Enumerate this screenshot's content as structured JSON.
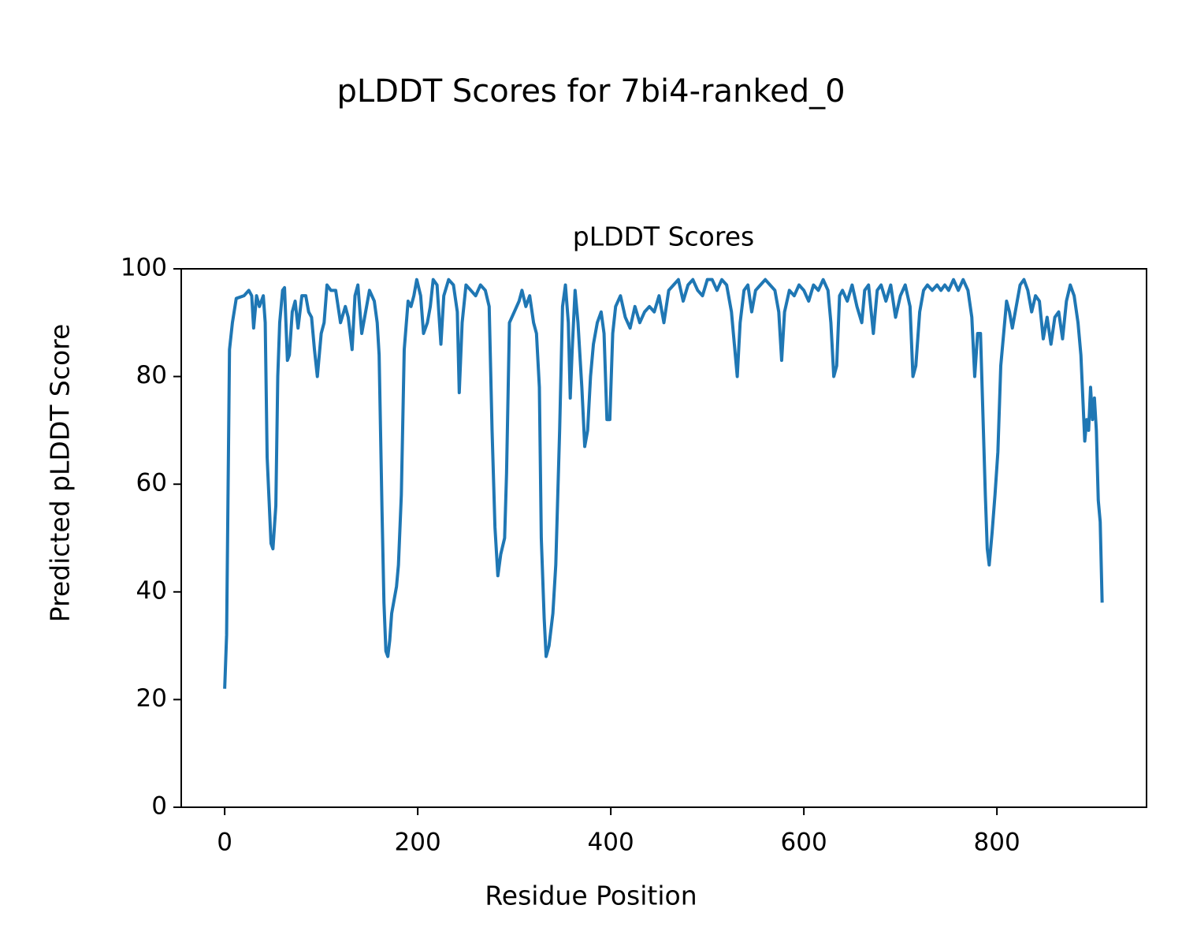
{
  "chart_data": {
    "type": "line",
    "title": "pLDDT Scores for 7bi4-ranked_0",
    "subtitle": "pLDDT Scores",
    "x_label": "Residue Position",
    "y_label": "Predicted pLDDT Score",
    "xlim": [
      -45,
      955
    ],
    "xticks": [
      0,
      200,
      400,
      600,
      800
    ],
    "ylim": [
      0,
      100
    ],
    "yticks": [
      0,
      20,
      40,
      60,
      80,
      100
    ],
    "grid": false,
    "series": [
      {
        "name": "pLDDT",
        "color": "#1f77b4",
        "x": [
          0,
          2,
          5,
          8,
          12,
          20,
          25,
          28,
          30,
          33,
          36,
          40,
          42,
          44,
          46,
          48,
          50,
          53,
          55,
          57,
          60,
          62,
          65,
          67,
          70,
          73,
          76,
          80,
          84,
          87,
          90,
          93,
          96,
          100,
          103,
          106,
          110,
          115,
          120,
          125,
          128,
          132,
          135,
          138,
          142,
          146,
          150,
          155,
          158,
          160,
          163,
          165,
          167,
          169,
          171,
          173,
          175,
          178,
          180,
          183,
          186,
          190,
          193,
          196,
          199,
          203,
          206,
          210,
          213,
          216,
          220,
          224,
          227,
          232,
          237,
          241,
          243,
          246,
          250,
          255,
          260,
          265,
          270,
          274,
          277,
          280,
          283,
          286,
          290,
          292,
          295,
          300,
          305,
          308,
          312,
          316,
          320,
          323,
          326,
          328,
          331,
          333,
          336,
          340,
          343,
          347,
          350,
          353,
          356,
          358,
          360,
          363,
          366,
          370,
          373,
          376,
          379,
          382,
          386,
          390,
          393,
          396,
          399,
          402,
          405,
          410,
          415,
          420,
          425,
          430,
          435,
          440,
          445,
          450,
          455,
          460,
          465,
          470,
          475,
          480,
          485,
          490,
          495,
          500,
          505,
          510,
          515,
          520,
          525,
          528,
          531,
          534,
          538,
          542,
          546,
          550,
          555,
          560,
          565,
          570,
          574,
          577,
          580,
          585,
          590,
          595,
          600,
          605,
          610,
          615,
          620,
          625,
          628,
          631,
          634,
          637,
          640,
          645,
          650,
          655,
          660,
          663,
          667,
          672,
          676,
          680,
          685,
          690,
          695,
          700,
          705,
          710,
          713,
          716,
          720,
          724,
          728,
          733,
          738,
          742,
          746,
          750,
          755,
          760,
          765,
          770,
          774,
          777,
          780,
          783,
          786,
          788,
          790,
          792,
          795,
          798,
          801,
          804,
          807,
          810,
          813,
          816,
          820,
          824,
          828,
          832,
          836,
          840,
          844,
          848,
          852,
          856,
          860,
          864,
          868,
          872,
          876,
          880,
          884,
          887,
          889,
          891,
          893,
          895,
          897,
          899,
          901,
          903,
          905,
          907,
          909
        ],
        "values": [
          22,
          32,
          85,
          90,
          94.5,
          95,
          96,
          95,
          89,
          95,
          93,
          95,
          90,
          65,
          57,
          49,
          48,
          56,
          80,
          90,
          96,
          96.5,
          83,
          84,
          92,
          94,
          89,
          95,
          95,
          92,
          91,
          85,
          80,
          88,
          90,
          97,
          96,
          96,
          90,
          93,
          91,
          85,
          95,
          97,
          88,
          92,
          96,
          94,
          90,
          84,
          55,
          38,
          29,
          28,
          31,
          36,
          38,
          41,
          45,
          58,
          85,
          94,
          93,
          95,
          98,
          95,
          88,
          90,
          93,
          98,
          97,
          86,
          95,
          98,
          97,
          92,
          77,
          90,
          97,
          96,
          95,
          97,
          96,
          93,
          70,
          52,
          43,
          47,
          50,
          62,
          90,
          92,
          94,
          96,
          93,
          95,
          90,
          88,
          78,
          50,
          35,
          28,
          30,
          36,
          45,
          70,
          93,
          97,
          90,
          76,
          85,
          96,
          90,
          78,
          67,
          70,
          80,
          86,
          90,
          92,
          88,
          72,
          72,
          88,
          93,
          95,
          91,
          89,
          93,
          90,
          92,
          93,
          92,
          95,
          90,
          96,
          97,
          98,
          94,
          97,
          98,
          96,
          95,
          98,
          98,
          96,
          98,
          97,
          92,
          86,
          80,
          90,
          96,
          97,
          92,
          96,
          97,
          98,
          97,
          96,
          92,
          83,
          92,
          96,
          95,
          97,
          96,
          94,
          97,
          96,
          98,
          96,
          90,
          80,
          82,
          95,
          96,
          94,
          97,
          93,
          90,
          96,
          97,
          88,
          96,
          97,
          94,
          97,
          91,
          95,
          97,
          93,
          80,
          82,
          92,
          96,
          97,
          96,
          97,
          96,
          97,
          96,
          98,
          96,
          98,
          96,
          91,
          80,
          88,
          88,
          70,
          58,
          48,
          45,
          51,
          58,
          66,
          82,
          88,
          94,
          92,
          89,
          93,
          97,
          98,
          96,
          92,
          95,
          94,
          87,
          91,
          86,
          91,
          92,
          87,
          94,
          97,
          95,
          90,
          84,
          76,
          68,
          72,
          70,
          78,
          72,
          76,
          70,
          57,
          53,
          38
        ]
      }
    ]
  }
}
